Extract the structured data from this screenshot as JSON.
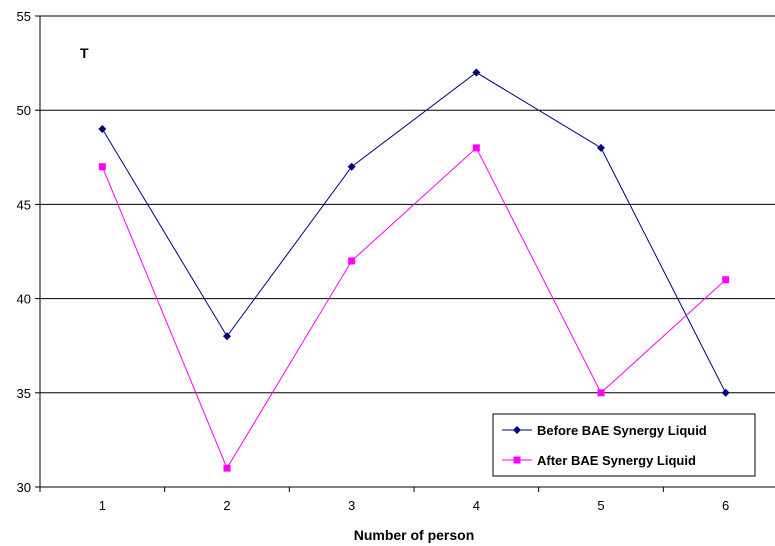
{
  "chart_data": {
    "type": "line",
    "title": "",
    "annotation": "T",
    "xlabel": "Number of person",
    "ylabel": "",
    "categories": [
      "1",
      "2",
      "3",
      "4",
      "5",
      "6"
    ],
    "ylim": [
      30,
      55
    ],
    "yticks": [
      30,
      35,
      40,
      45,
      50,
      55
    ],
    "grid": true,
    "legend_position": "bottom-right",
    "series": [
      {
        "name": "Before BAE Synergy Liquid",
        "values": [
          49,
          38,
          47,
          52,
          48,
          35
        ],
        "color": "#000080",
        "marker": "diamond"
      },
      {
        "name": "After BAE Synergy Liquid",
        "values": [
          47,
          31,
          42,
          48,
          35,
          41
        ],
        "color": "#ff00ff",
        "marker": "square"
      }
    ]
  }
}
